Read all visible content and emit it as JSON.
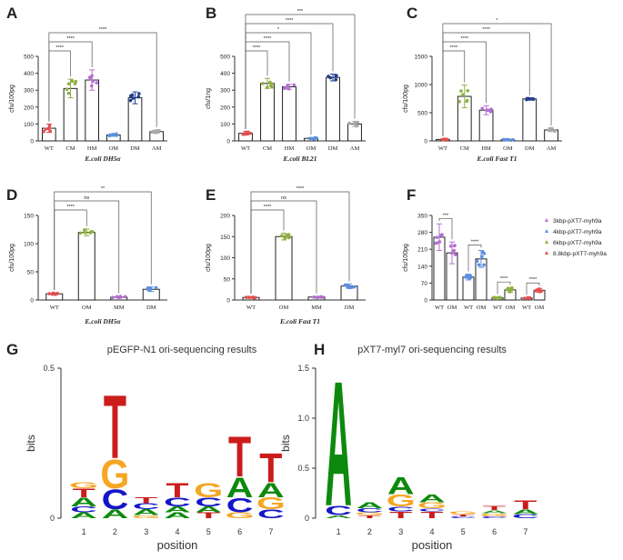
{
  "chart_data": [
    {
      "panel": "A",
      "type": "bar",
      "xlabel": "E.coli DH5α",
      "ylabel": "cfu/100pg",
      "ylim": [
        0,
        500
      ],
      "yticks": [
        0,
        100,
        200,
        300,
        400,
        500
      ],
      "categories": [
        "WT",
        "CM",
        "HM",
        "OM",
        "DM",
        "AM"
      ],
      "values": [
        75,
        310,
        360,
        35,
        255,
        55
      ],
      "errors": [
        25,
        55,
        60,
        8,
        35,
        10
      ],
      "colors": [
        "#e05050",
        "#8fb040",
        "#b46fd0",
        "#5b8fe0",
        "#1f3e8a",
        "#a8a8a8"
      ],
      "brackets": [
        {
          "from": "WT",
          "to": "CM",
          "label": "****"
        },
        {
          "from": "WT",
          "to": "HM",
          "label": "****"
        },
        {
          "from": "WT",
          "to": "AM",
          "label": "****"
        }
      ]
    },
    {
      "panel": "B",
      "type": "bar",
      "xlabel": "E.coli BL21",
      "ylabel": "cfu/1ng",
      "ylim": [
        0,
        500
      ],
      "yticks": [
        0,
        100,
        200,
        300,
        400,
        500
      ],
      "categories": [
        "WT",
        "CM",
        "HM",
        "OM",
        "DM",
        "AM"
      ],
      "values": [
        45,
        340,
        320,
        15,
        375,
        100
      ],
      "errors": [
        10,
        30,
        15,
        5,
        20,
        15
      ],
      "colors": [
        "#e05050",
        "#8fb040",
        "#b46fd0",
        "#5b8fe0",
        "#1f3e8a",
        "#a8a8a8"
      ],
      "brackets": [
        {
          "from": "WT",
          "to": "CM",
          "label": "****"
        },
        {
          "from": "WT",
          "to": "HM",
          "label": "****"
        },
        {
          "from": "WT",
          "to": "OM",
          "label": "*"
        },
        {
          "from": "WT",
          "to": "DM",
          "label": "****"
        },
        {
          "from": "WT",
          "to": "AM",
          "label": "***"
        }
      ]
    },
    {
      "panel": "C",
      "type": "bar",
      "xlabel": "E.coli Fast T1",
      "ylabel": "cfu/100pg",
      "ylim": [
        0,
        1500
      ],
      "yticks": [
        0,
        500,
        1000,
        1500
      ],
      "categories": [
        "WT",
        "CM",
        "HM",
        "OM",
        "DM",
        "AM"
      ],
      "values": [
        25,
        790,
        545,
        20,
        745,
        195
      ],
      "errors": [
        10,
        200,
        80,
        8,
        20,
        30
      ],
      "colors": [
        "#e05050",
        "#8fb040",
        "#b46fd0",
        "#5b8fe0",
        "#1f3e8a",
        "#a8a8a8"
      ],
      "brackets": [
        {
          "from": "WT",
          "to": "CM",
          "label": "****"
        },
        {
          "from": "WT",
          "to": "HM",
          "label": "****"
        },
        {
          "from": "WT",
          "to": "DM",
          "label": "****"
        },
        {
          "from": "WT",
          "to": "AM",
          "label": "*"
        }
      ]
    },
    {
      "panel": "D",
      "type": "bar",
      "xlabel": "E.coli DH5α",
      "ylabel": "cfu/100pg",
      "ylim": [
        0,
        150
      ],
      "yticks": [
        0,
        50,
        100,
        150
      ],
      "categories": [
        "WT",
        "OM",
        "MM",
        "DM"
      ],
      "values": [
        11,
        120,
        5,
        19
      ],
      "errors": [
        2,
        6,
        2,
        4
      ],
      "colors": [
        "#e05050",
        "#8fb040",
        "#b46fd0",
        "#5b8fe0"
      ],
      "brackets": [
        {
          "from": "WT",
          "to": "OM",
          "label": "****"
        },
        {
          "from": "WT",
          "to": "MM",
          "label": "ns"
        },
        {
          "from": "WT",
          "to": "DM",
          "label": "**"
        }
      ]
    },
    {
      "panel": "E",
      "type": "bar",
      "xlabel": "E.coli Fast T1",
      "ylabel": "cfu/100pg",
      "ylim": [
        0,
        200
      ],
      "yticks": [
        0,
        50,
        100,
        150,
        200
      ],
      "categories": [
        "WT",
        "OM",
        "MM",
        "DM"
      ],
      "values": [
        6,
        150,
        7,
        33
      ],
      "errors": [
        2,
        8,
        2,
        5
      ],
      "colors": [
        "#e05050",
        "#8fb040",
        "#b46fd0",
        "#5b8fe0"
      ],
      "brackets": [
        {
          "from": "WT",
          "to": "OM",
          "label": "****"
        },
        {
          "from": "WT",
          "to": "MM",
          "label": "ns"
        },
        {
          "from": "WT",
          "to": "DM",
          "label": "****"
        }
      ]
    },
    {
      "panel": "F",
      "type": "bar",
      "ylabel": "cfu/100pg",
      "ylim": [
        0,
        350
      ],
      "yticks": [
        0,
        70,
        140,
        210,
        280,
        350
      ],
      "categories": [
        "WT",
        "OM",
        "WT",
        "OM",
        "WT",
        "OM",
        "WT",
        "OM"
      ],
      "values": [
        260,
        195,
        95,
        170,
        10,
        42,
        8,
        40
      ],
      "errors": [
        55,
        45,
        12,
        35,
        3,
        10,
        2,
        8
      ],
      "colors": [
        "#b46fd0",
        "#b46fd0",
        "#5b8fe0",
        "#5b8fe0",
        "#8fb040",
        "#8fb040",
        "#e05050",
        "#e05050"
      ],
      "legend_position": "right",
      "legend": [
        {
          "name": "3kbp-pXT7-myh9a",
          "color": "#b46fd0"
        },
        {
          "name": "4kbp-pXT7-myh9a",
          "color": "#5b8fe0"
        },
        {
          "name": "6kbp-pXT7-myh9a",
          "color": "#8fb040"
        },
        {
          "name": "8.8kbp-pXT7-myh9a",
          "color": "#e05050"
        }
      ],
      "brackets": [
        {
          "from_index": 0,
          "to_index": 1,
          "label": "***"
        },
        {
          "from_index": 2,
          "to_index": 3,
          "label": "****"
        },
        {
          "from_index": 4,
          "to_index": 5,
          "label": "****"
        },
        {
          "from_index": 6,
          "to_index": 7,
          "label": "****"
        }
      ]
    },
    {
      "panel": "G",
      "type": "sequence-logo",
      "title": "pEGFP-N1 ori-sequencing results",
      "xlabel": "position",
      "ylabel": "bits",
      "ylim": [
        0,
        0.5
      ],
      "yticks": [
        "0",
        "0.5"
      ],
      "positions": [
        1,
        2,
        3,
        4,
        5,
        6,
        7
      ],
      "stacks": [
        [
          {
            "letter": "A",
            "height": 0.02
          },
          {
            "letter": "C",
            "height": 0.02
          },
          {
            "letter": "A",
            "height": 0.03
          },
          {
            "letter": "T",
            "height": 0.03
          },
          {
            "letter": "G",
            "height": 0.02
          }
        ],
        [
          {
            "letter": "A",
            "height": 0.03
          },
          {
            "letter": "C",
            "height": 0.07
          },
          {
            "letter": "G",
            "height": 0.1
          },
          {
            "letter": "T",
            "height": 0.22
          }
        ],
        [
          {
            "letter": "G",
            "height": 0.01
          },
          {
            "letter": "A",
            "height": 0.02
          },
          {
            "letter": "C",
            "height": 0.02
          },
          {
            "letter": "T",
            "height": 0.02
          }
        ],
        [
          {
            "letter": "A",
            "height": 0.02
          },
          {
            "letter": "A",
            "height": 0.02
          },
          {
            "letter": "C",
            "height": 0.03
          },
          {
            "letter": "T",
            "height": 0.05
          }
        ],
        [
          {
            "letter": "T",
            "height": 0.02
          },
          {
            "letter": "A",
            "height": 0.02
          },
          {
            "letter": "C",
            "height": 0.03
          },
          {
            "letter": "G",
            "height": 0.05
          }
        ],
        [
          {
            "letter": "G",
            "height": 0.02
          },
          {
            "letter": "C",
            "height": 0.05
          },
          {
            "letter": "A",
            "height": 0.07
          },
          {
            "letter": "T",
            "height": 0.14
          }
        ],
        [
          {
            "letter": "C",
            "height": 0.03
          },
          {
            "letter": "G",
            "height": 0.04
          },
          {
            "letter": "A",
            "height": 0.05
          },
          {
            "letter": "T",
            "height": 0.1
          }
        ]
      ]
    },
    {
      "panel": "H",
      "type": "sequence-logo",
      "title": "pXT7-myl7 ori-sequencing results",
      "xlabel": "position",
      "ylabel": "bits",
      "ylim": [
        0,
        1.5
      ],
      "yticks": [
        "0",
        "0.5",
        "1.0",
        "1.5"
      ],
      "positions": [
        1,
        2,
        3,
        4,
        5,
        6,
        7
      ],
      "stacks": [
        [
          {
            "letter": "A",
            "height": 0.03
          },
          {
            "letter": "C",
            "height": 0.1
          },
          {
            "letter": "A",
            "height": 1.3
          }
        ],
        [
          {
            "letter": "T",
            "height": 0.03
          },
          {
            "letter": "G",
            "height": 0.03
          },
          {
            "letter": "C",
            "height": 0.04
          },
          {
            "letter": "A",
            "height": 0.06
          }
        ],
        [
          {
            "letter": "T",
            "height": 0.07
          },
          {
            "letter": "C",
            "height": 0.05
          },
          {
            "letter": "G",
            "height": 0.12
          },
          {
            "letter": "A",
            "height": 0.18
          }
        ],
        [
          {
            "letter": "T",
            "height": 0.07
          },
          {
            "letter": "C",
            "height": 0.03
          },
          {
            "letter": "G",
            "height": 0.06
          },
          {
            "letter": "A",
            "height": 0.08
          }
        ],
        [
          {
            "letter": "C",
            "height": 0.02
          },
          {
            "letter": "T",
            "height": 0.02
          },
          {
            "letter": "G",
            "height": 0.03
          }
        ],
        [
          {
            "letter": "C",
            "height": 0.02
          },
          {
            "letter": "G",
            "height": 0.03
          },
          {
            "letter": "A",
            "height": 0.03
          },
          {
            "letter": "T",
            "height": 0.04
          }
        ],
        [
          {
            "letter": "C",
            "height": 0.04
          },
          {
            "letter": "A",
            "height": 0.05
          },
          {
            "letter": "T",
            "height": 0.09
          }
        ]
      ]
    }
  ]
}
